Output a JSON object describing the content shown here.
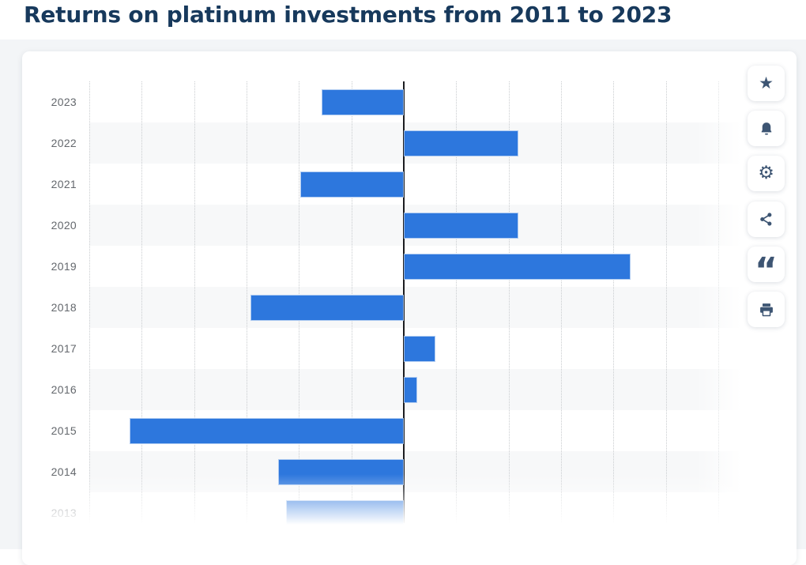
{
  "page": {
    "title": "Returns on platinum investments from 2011 to 2023"
  },
  "chart_data": {
    "type": "bar",
    "orientation": "horizontal",
    "title": "Returns on platinum investments from 2011 to 2023",
    "categories": [
      "2023",
      "2022",
      "2021",
      "2020",
      "2019",
      "2018",
      "2017",
      "2016",
      "2015",
      "2014",
      "2013"
    ],
    "values": [
      -7.7,
      10.8,
      -9.7,
      10.8,
      21.5,
      -14.5,
      2.9,
      1.1,
      -26.0,
      -11.8,
      -11.1
    ],
    "unit": "percent",
    "xlim": [
      -30,
      35
    ],
    "gridline_interval": 5,
    "grid": "vertical-dotted",
    "axis_tick_labels_visible": false,
    "legend": "none",
    "bar_color": "#2d77dd",
    "zero_line_color": "#1b1c20",
    "row_band_color": "#f7f8f9",
    "note_visible_state": "2013 row fades out at bottom edge of viewport; 2012 and 2011 rows are scrolled out of view"
  },
  "toolbar": {
    "buttons": [
      {
        "name": "favorite",
        "icon": "star-icon"
      },
      {
        "name": "alerts",
        "icon": "bell-icon"
      },
      {
        "name": "settings",
        "icon": "gear-icon"
      },
      {
        "name": "share",
        "icon": "share-icon"
      },
      {
        "name": "cite",
        "icon": "quote-icon"
      },
      {
        "name": "print",
        "icon": "printer-icon"
      }
    ],
    "glyphs": {
      "star": "★",
      "gear": "⚙",
      "quote": "“"
    }
  },
  "colors": {
    "title_text": "#17395c",
    "bar_blue": "#2d77dd",
    "icon_slate": "#3d5573",
    "page_background": "#f3f5f7",
    "card_background": "#ffffff",
    "year_label_text": "#64686d"
  }
}
